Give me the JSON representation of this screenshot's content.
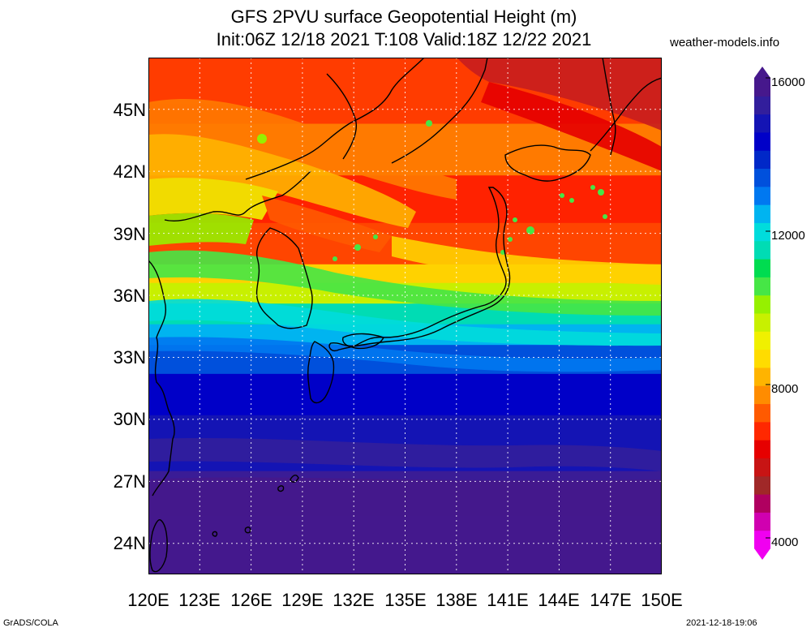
{
  "title": {
    "line1": "GFS 2PVU surface Geopotential Height (m)",
    "line2": "Init:06Z 12/18 2021 T:108 Valid:18Z 12/22 2021"
  },
  "site": "weather-models.info",
  "footer": {
    "left": "GrADS/COLA",
    "right": "2021-12-18-19:06"
  },
  "axes": {
    "x_labels": [
      "120E",
      "123E",
      "126E",
      "129E",
      "132E",
      "135E",
      "138E",
      "141E",
      "144E",
      "147E",
      "150E"
    ],
    "y_labels": [
      "45N",
      "42N",
      "39N",
      "36N",
      "33N",
      "30N",
      "27N",
      "24N"
    ],
    "lon_range": [
      120,
      150
    ],
    "lat_range": [
      22.5,
      47.5
    ],
    "grid": true
  },
  "colorbar": {
    "labels": [
      "16000",
      "12000",
      "8000",
      "4000"
    ],
    "range": [
      4000,
      16000
    ],
    "colors": [
      "#f000f0",
      "#d000b0",
      "#b00060",
      "#a02828",
      "#c81414",
      "#e60000",
      "#ff2800",
      "#ff5a00",
      "#ff8c00",
      "#ffb400",
      "#ffdc00",
      "#f0f000",
      "#c8f000",
      "#96f000",
      "#46e646",
      "#00dc50",
      "#00dcb4",
      "#00dcdc",
      "#00b4f0",
      "#0078f0",
      "#0050dc",
      "#0028c8",
      "#0000c8",
      "#1414b4",
      "#321e9c",
      "#46188c"
    ]
  },
  "map_bands": [
    {
      "lat_top": 47.5,
      "lat_bot": 44.3,
      "color": "#ff3c00"
    },
    {
      "lat_top": 44.3,
      "lat_bot": 41.8,
      "color": "#ff7a00"
    },
    {
      "lat_top": 41.8,
      "lat_bot": 39.5,
      "color": "#ff2200"
    },
    {
      "lat_top": 39.5,
      "lat_bot": 37.5,
      "color": "#ff4500"
    },
    {
      "lat_top": 37.5,
      "lat_bot": 36.6,
      "color": "#ffd200"
    },
    {
      "lat_top": 36.6,
      "lat_bot": 35.6,
      "color": "#c8f000"
    },
    {
      "lat_top": 35.6,
      "lat_bot": 34.6,
      "color": "#00dcb4"
    },
    {
      "lat_top": 34.6,
      "lat_bot": 33.6,
      "color": "#00b4f0"
    },
    {
      "lat_top": 33.6,
      "lat_bot": 32.2,
      "color": "#0050dc"
    },
    {
      "lat_top": 32.2,
      "lat_bot": 30.2,
      "color": "#0000c8"
    },
    {
      "lat_top": 30.2,
      "lat_bot": 27.5,
      "color": "#1414b4"
    },
    {
      "lat_top": 27.5,
      "lat_bot": 22.5,
      "color": "#3a1c96"
    }
  ]
}
